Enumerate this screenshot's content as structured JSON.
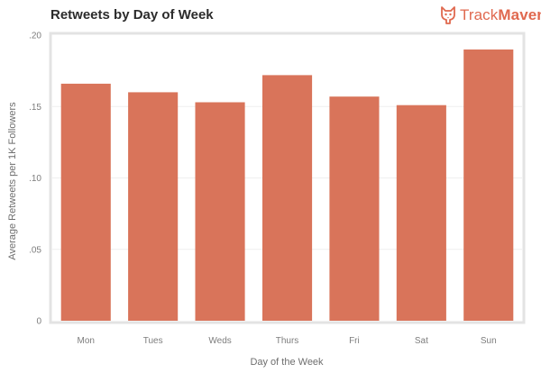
{
  "chart_data": {
    "type": "bar",
    "title": "Retweets by Day of Week",
    "xlabel": "Day of the Week",
    "ylabel": "Average Retweets per 1K Followers",
    "categories": [
      "Mon",
      "Tues",
      "Weds",
      "Thurs",
      "Fri",
      "Sat",
      "Sun"
    ],
    "values": [
      0.166,
      0.16,
      0.153,
      0.172,
      0.157,
      0.151,
      0.19
    ],
    "ylim": [
      0,
      0.2
    ],
    "yticks": [
      0,
      0.05,
      0.1,
      0.15,
      0.2
    ],
    "ytick_labels": [
      "0",
      ".05",
      ".10",
      ".15",
      ".20"
    ],
    "grid": true,
    "bar_color": "#d9745a"
  },
  "logo": {
    "text_light": "Track",
    "text_bold": "Maven",
    "icon": "dog-logo-icon",
    "color": "#e0694f"
  }
}
